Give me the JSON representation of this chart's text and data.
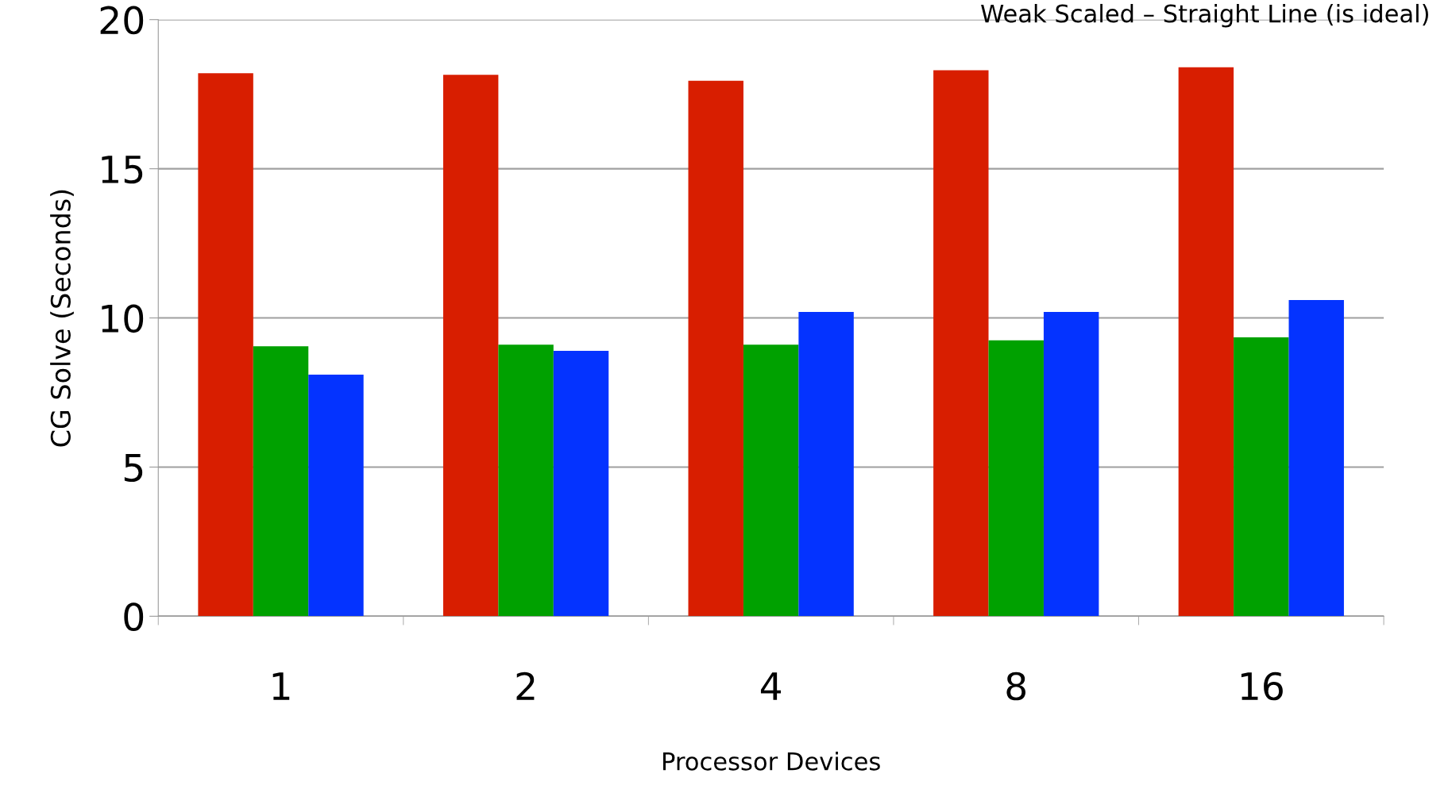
{
  "chart_data": {
    "type": "bar",
    "title": "Weak Scaled – Straight Line (is ideal)",
    "xlabel": "Processor Devices",
    "ylabel": "CG Solve (Seconds)",
    "categories": [
      "1",
      "2",
      "4",
      "8",
      "16"
    ],
    "series": [
      {
        "color": "#d81e00",
        "values": [
          18.2,
          18.15,
          17.95,
          18.3,
          18.4
        ]
      },
      {
        "color": "#00a100",
        "values": [
          9.05,
          9.1,
          9.1,
          9.25,
          9.35
        ]
      },
      {
        "color": "#0433ff",
        "values": [
          8.1,
          8.9,
          10.2,
          10.2,
          10.6
        ]
      }
    ],
    "ylim": [
      0,
      20
    ],
    "yticks": [
      0,
      5,
      10,
      15,
      20
    ],
    "grid": "y"
  }
}
